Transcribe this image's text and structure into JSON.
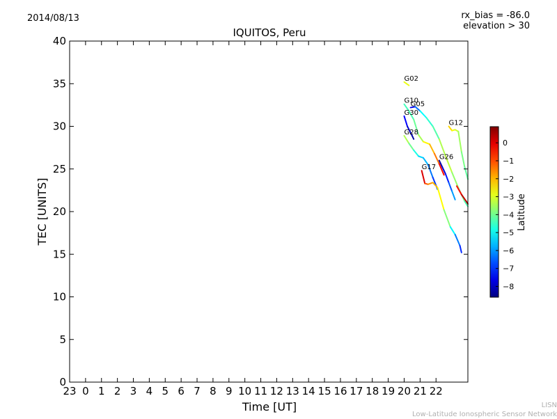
{
  "header": {
    "date": "2014/08/13",
    "title": "IQUITOS, Peru",
    "rx_bias": "rx_bias = -86.0",
    "elevation": "elevation > 30"
  },
  "footer": {
    "line1": "LISN",
    "line2": "Low-Latitude Ionospheric Sensor Network"
  },
  "chart_data": {
    "type": "line",
    "title": "IQUITOS, Peru",
    "xlabel": "Time [UT]",
    "ylabel": "TEC [UNITS]",
    "colorbar_label": "Latitude",
    "xlim": [
      -1,
      24
    ],
    "ylim": [
      0,
      40
    ],
    "x_ticks": [
      {
        "value": -1,
        "label": "23"
      },
      {
        "value": 0,
        "label": "0"
      },
      {
        "value": 1,
        "label": "1"
      },
      {
        "value": 2,
        "label": "2"
      },
      {
        "value": 3,
        "label": "3"
      },
      {
        "value": 4,
        "label": "4"
      },
      {
        "value": 5,
        "label": "5"
      },
      {
        "value": 6,
        "label": "6"
      },
      {
        "value": 7,
        "label": "7"
      },
      {
        "value": 8,
        "label": "8"
      },
      {
        "value": 9,
        "label": "9"
      },
      {
        "value": 10,
        "label": "10"
      },
      {
        "value": 11,
        "label": "11"
      },
      {
        "value": 12,
        "label": "12"
      },
      {
        "value": 13,
        "label": "13"
      },
      {
        "value": 14,
        "label": "14"
      },
      {
        "value": 15,
        "label": "15"
      },
      {
        "value": 16,
        "label": "16"
      },
      {
        "value": 17,
        "label": "17"
      },
      {
        "value": 18,
        "label": "18"
      },
      {
        "value": 19,
        "label": "19"
      },
      {
        "value": 20,
        "label": "20"
      },
      {
        "value": 21,
        "label": "21"
      },
      {
        "value": 22,
        "label": "22"
      }
    ],
    "y_ticks": [
      0,
      5,
      10,
      15,
      20,
      25,
      30,
      35,
      40
    ],
    "colorbar": {
      "min": -8.6,
      "max": 0.9,
      "ticks": [
        0,
        -1,
        -2,
        -3,
        -4,
        -5,
        -6,
        -7,
        -8
      ],
      "tick_labels": [
        "0",
        "−1",
        "−2",
        "−3",
        "−4",
        "−5",
        "−6",
        "−7",
        "−8"
      ]
    },
    "series": [
      {
        "name": "G02",
        "points": [
          [
            20.0,
            35.2,
            -2.8
          ],
          [
            20.3,
            34.8,
            -2.9
          ]
        ]
      },
      {
        "name": "G10",
        "points": [
          [
            20.0,
            32.6,
            -4.3
          ],
          [
            20.3,
            31.8,
            -4.5
          ],
          [
            20.6,
            30.8,
            -4.2
          ],
          [
            20.9,
            29.0,
            -3.9
          ],
          [
            21.2,
            28.2,
            -3.0
          ],
          [
            21.6,
            27.9,
            -2.2
          ],
          [
            21.9,
            26.8,
            -1.8
          ],
          [
            22.2,
            25.6,
            -1.0
          ],
          [
            22.5,
            24.3,
            0.3
          ]
        ]
      },
      {
        "name": "G05",
        "points": [
          [
            20.4,
            32.2,
            -7.8
          ],
          [
            20.7,
            32.3,
            -7.2
          ],
          [
            21.0,
            31.8,
            -5.6
          ],
          [
            21.4,
            31.0,
            -4.5
          ],
          [
            21.8,
            30.0,
            -4.7
          ],
          [
            22.2,
            28.5,
            -3.8
          ],
          [
            22.6,
            26.5,
            -3.0
          ],
          [
            23.0,
            24.6,
            -3.5
          ],
          [
            23.4,
            22.8,
            -3.8
          ],
          [
            23.8,
            21.2,
            -4.2
          ],
          [
            24.0,
            20.6,
            -4.5
          ]
        ]
      },
      {
        "name": "G30",
        "points": [
          [
            20.0,
            31.2,
            -7.2
          ],
          [
            20.2,
            30.0,
            -7.6
          ],
          [
            20.5,
            28.9,
            -8.2
          ],
          [
            20.6,
            28.5,
            -8.4
          ]
        ]
      },
      {
        "name": "G28",
        "points": [
          [
            20.0,
            28.9,
            -3.0
          ],
          [
            20.3,
            28.0,
            -3.8
          ],
          [
            20.6,
            27.2,
            -4.2
          ],
          [
            20.9,
            26.5,
            -5.4
          ],
          [
            21.2,
            26.3,
            -5.4
          ],
          [
            21.5,
            25.5,
            -6.0
          ],
          [
            21.8,
            24.0,
            -6.6
          ],
          [
            22.1,
            22.6,
            -7.2
          ]
        ]
      },
      {
        "name": "G17",
        "points": [
          [
            21.1,
            24.8,
            0.6
          ],
          [
            21.3,
            23.3,
            -0.5
          ],
          [
            21.5,
            23.2,
            -1.5
          ],
          [
            21.8,
            23.4,
            -1.8
          ],
          [
            22.1,
            22.8,
            -2.2
          ],
          [
            22.5,
            20.2,
            -3.1
          ],
          [
            22.9,
            18.2,
            -4.5
          ],
          [
            23.2,
            17.3,
            -5.7
          ],
          [
            23.5,
            16.0,
            -6.8
          ],
          [
            23.6,
            15.2,
            -7.3
          ]
        ]
      },
      {
        "name": "G26",
        "points": [
          [
            22.2,
            26.0,
            -8.4
          ],
          [
            22.4,
            25.2,
            -8.0
          ],
          [
            22.6,
            24.4,
            -7.5
          ],
          [
            22.8,
            23.4,
            -6.9
          ],
          [
            23.0,
            22.4,
            -6.3
          ],
          [
            23.2,
            21.4,
            -5.6
          ]
        ]
      },
      {
        "name": "G12",
        "points": [
          [
            22.8,
            30.0,
            -2.0
          ],
          [
            23.0,
            29.5,
            -2.6
          ],
          [
            23.2,
            29.6,
            -2.9
          ],
          [
            23.4,
            29.4,
            -3.3
          ],
          [
            23.6,
            27.0,
            -3.8
          ],
          [
            23.8,
            25.2,
            -4.0
          ],
          [
            24.0,
            23.8,
            -4.3
          ]
        ]
      },
      {
        "name": "",
        "points": [
          [
            23.3,
            23.0,
            -0.8
          ],
          [
            23.6,
            22.0,
            0.0
          ],
          [
            23.9,
            21.2,
            0.5
          ],
          [
            24.0,
            20.9,
            0.6
          ]
        ]
      }
    ],
    "grid": false,
    "legend": "none"
  }
}
